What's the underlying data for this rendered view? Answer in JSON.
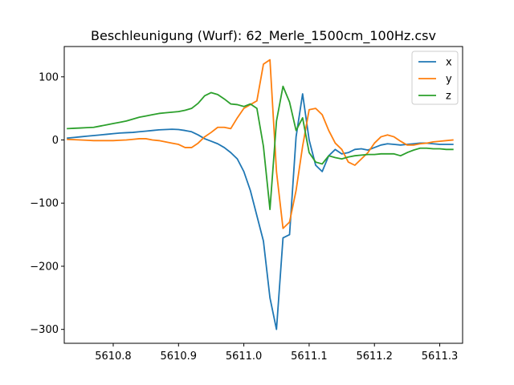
{
  "chart_data": {
    "type": "line",
    "title": "Beschleunigung (Wurf): 62_Merle_1500cm_100Hz.csv",
    "xlabel": "",
    "ylabel": "",
    "xlim": [
      5610.725,
      5611.335
    ],
    "ylim": [
      -322,
      148
    ],
    "x_ticks": [
      5610.8,
      5610.9,
      5611.0,
      5611.1,
      5611.2,
      5611.3
    ],
    "x_tick_labels": [
      "5610.8",
      "5610.9",
      "5611.0",
      "5611.1",
      "5611.2",
      "5611.3"
    ],
    "y_ticks": [
      100,
      0,
      -100,
      -200,
      -300
    ],
    "y_tick_labels": [
      "100",
      "0",
      "−100",
      "−200",
      "−300"
    ],
    "grid": false,
    "legend_position": "top-right",
    "x": [
      5610.73,
      5610.74,
      5610.75,
      5610.76,
      5610.77,
      5610.78,
      5610.79,
      5610.8,
      5610.81,
      5610.82,
      5610.83,
      5610.84,
      5610.85,
      5610.86,
      5610.87,
      5610.88,
      5610.89,
      5610.9,
      5610.91,
      5610.92,
      5610.93,
      5610.94,
      5610.95,
      5610.96,
      5610.97,
      5610.98,
      5610.99,
      5611.0,
      5611.01,
      5611.02,
      5611.03,
      5611.04,
      5611.05,
      5611.06,
      5611.07,
      5611.08,
      5611.09,
      5611.1,
      5611.11,
      5611.12,
      5611.13,
      5611.14,
      5611.15,
      5611.16,
      5611.17,
      5611.18,
      5611.19,
      5611.2,
      5611.21,
      5611.22,
      5611.23,
      5611.24,
      5611.25,
      5611.26,
      5611.27,
      5611.28,
      5611.29,
      5611.3,
      5611.31,
      5611.32
    ],
    "series": [
      {
        "name": "x",
        "color": "#1f77b4",
        "values": [
          3,
          4,
          5,
          6,
          7,
          8,
          9,
          10,
          11,
          11.5,
          12,
          13,
          14,
          15,
          16,
          16.5,
          17,
          16.5,
          15,
          13,
          8,
          2,
          -2,
          -6,
          -12,
          -20,
          -30,
          -50,
          -80,
          -120,
          -160,
          -250,
          -300,
          -155,
          -150,
          5,
          73,
          0,
          -40,
          -50,
          -25,
          -15,
          -22,
          -20,
          -15,
          -14,
          -16,
          -12,
          -8,
          -6,
          -7,
          -8,
          -7,
          -6,
          -5,
          -5,
          -6,
          -7,
          -7,
          -7
        ]
      },
      {
        "name": "y",
        "color": "#ff7f0e",
        "values": [
          1,
          0.5,
          0,
          -0.5,
          -1,
          -1,
          -1,
          -1,
          -0.5,
          0,
          1,
          2,
          2,
          0,
          -1,
          -3,
          -5,
          -7,
          -12,
          -12,
          -5,
          5,
          12,
          20,
          20,
          18,
          35,
          50,
          56,
          62,
          120,
          127,
          -50,
          -140,
          -130,
          -80,
          -10,
          48,
          50,
          40,
          15,
          -5,
          -15,
          -35,
          -40,
          -30,
          -20,
          -5,
          5,
          8,
          5,
          -2,
          -8,
          -8,
          -6,
          -5,
          -3,
          -2,
          -1,
          0
        ]
      },
      {
        "name": "z",
        "color": "#2ca02c",
        "values": [
          18,
          18.5,
          19,
          19.5,
          20,
          22,
          24,
          26,
          28,
          30,
          33,
          36,
          38,
          40,
          42,
          43,
          44,
          45,
          47,
          50,
          58,
          70,
          75,
          72,
          65,
          57,
          56,
          53,
          57,
          50,
          -10,
          -110,
          30,
          85,
          60,
          15,
          35,
          -20,
          -35,
          -38,
          -25,
          -28,
          -30,
          -27,
          -25,
          -24,
          -23,
          -23,
          -22,
          -22,
          -22,
          -25,
          -20,
          -16,
          -13,
          -13,
          -14,
          -14,
          -15,
          -15
        ]
      }
    ]
  }
}
